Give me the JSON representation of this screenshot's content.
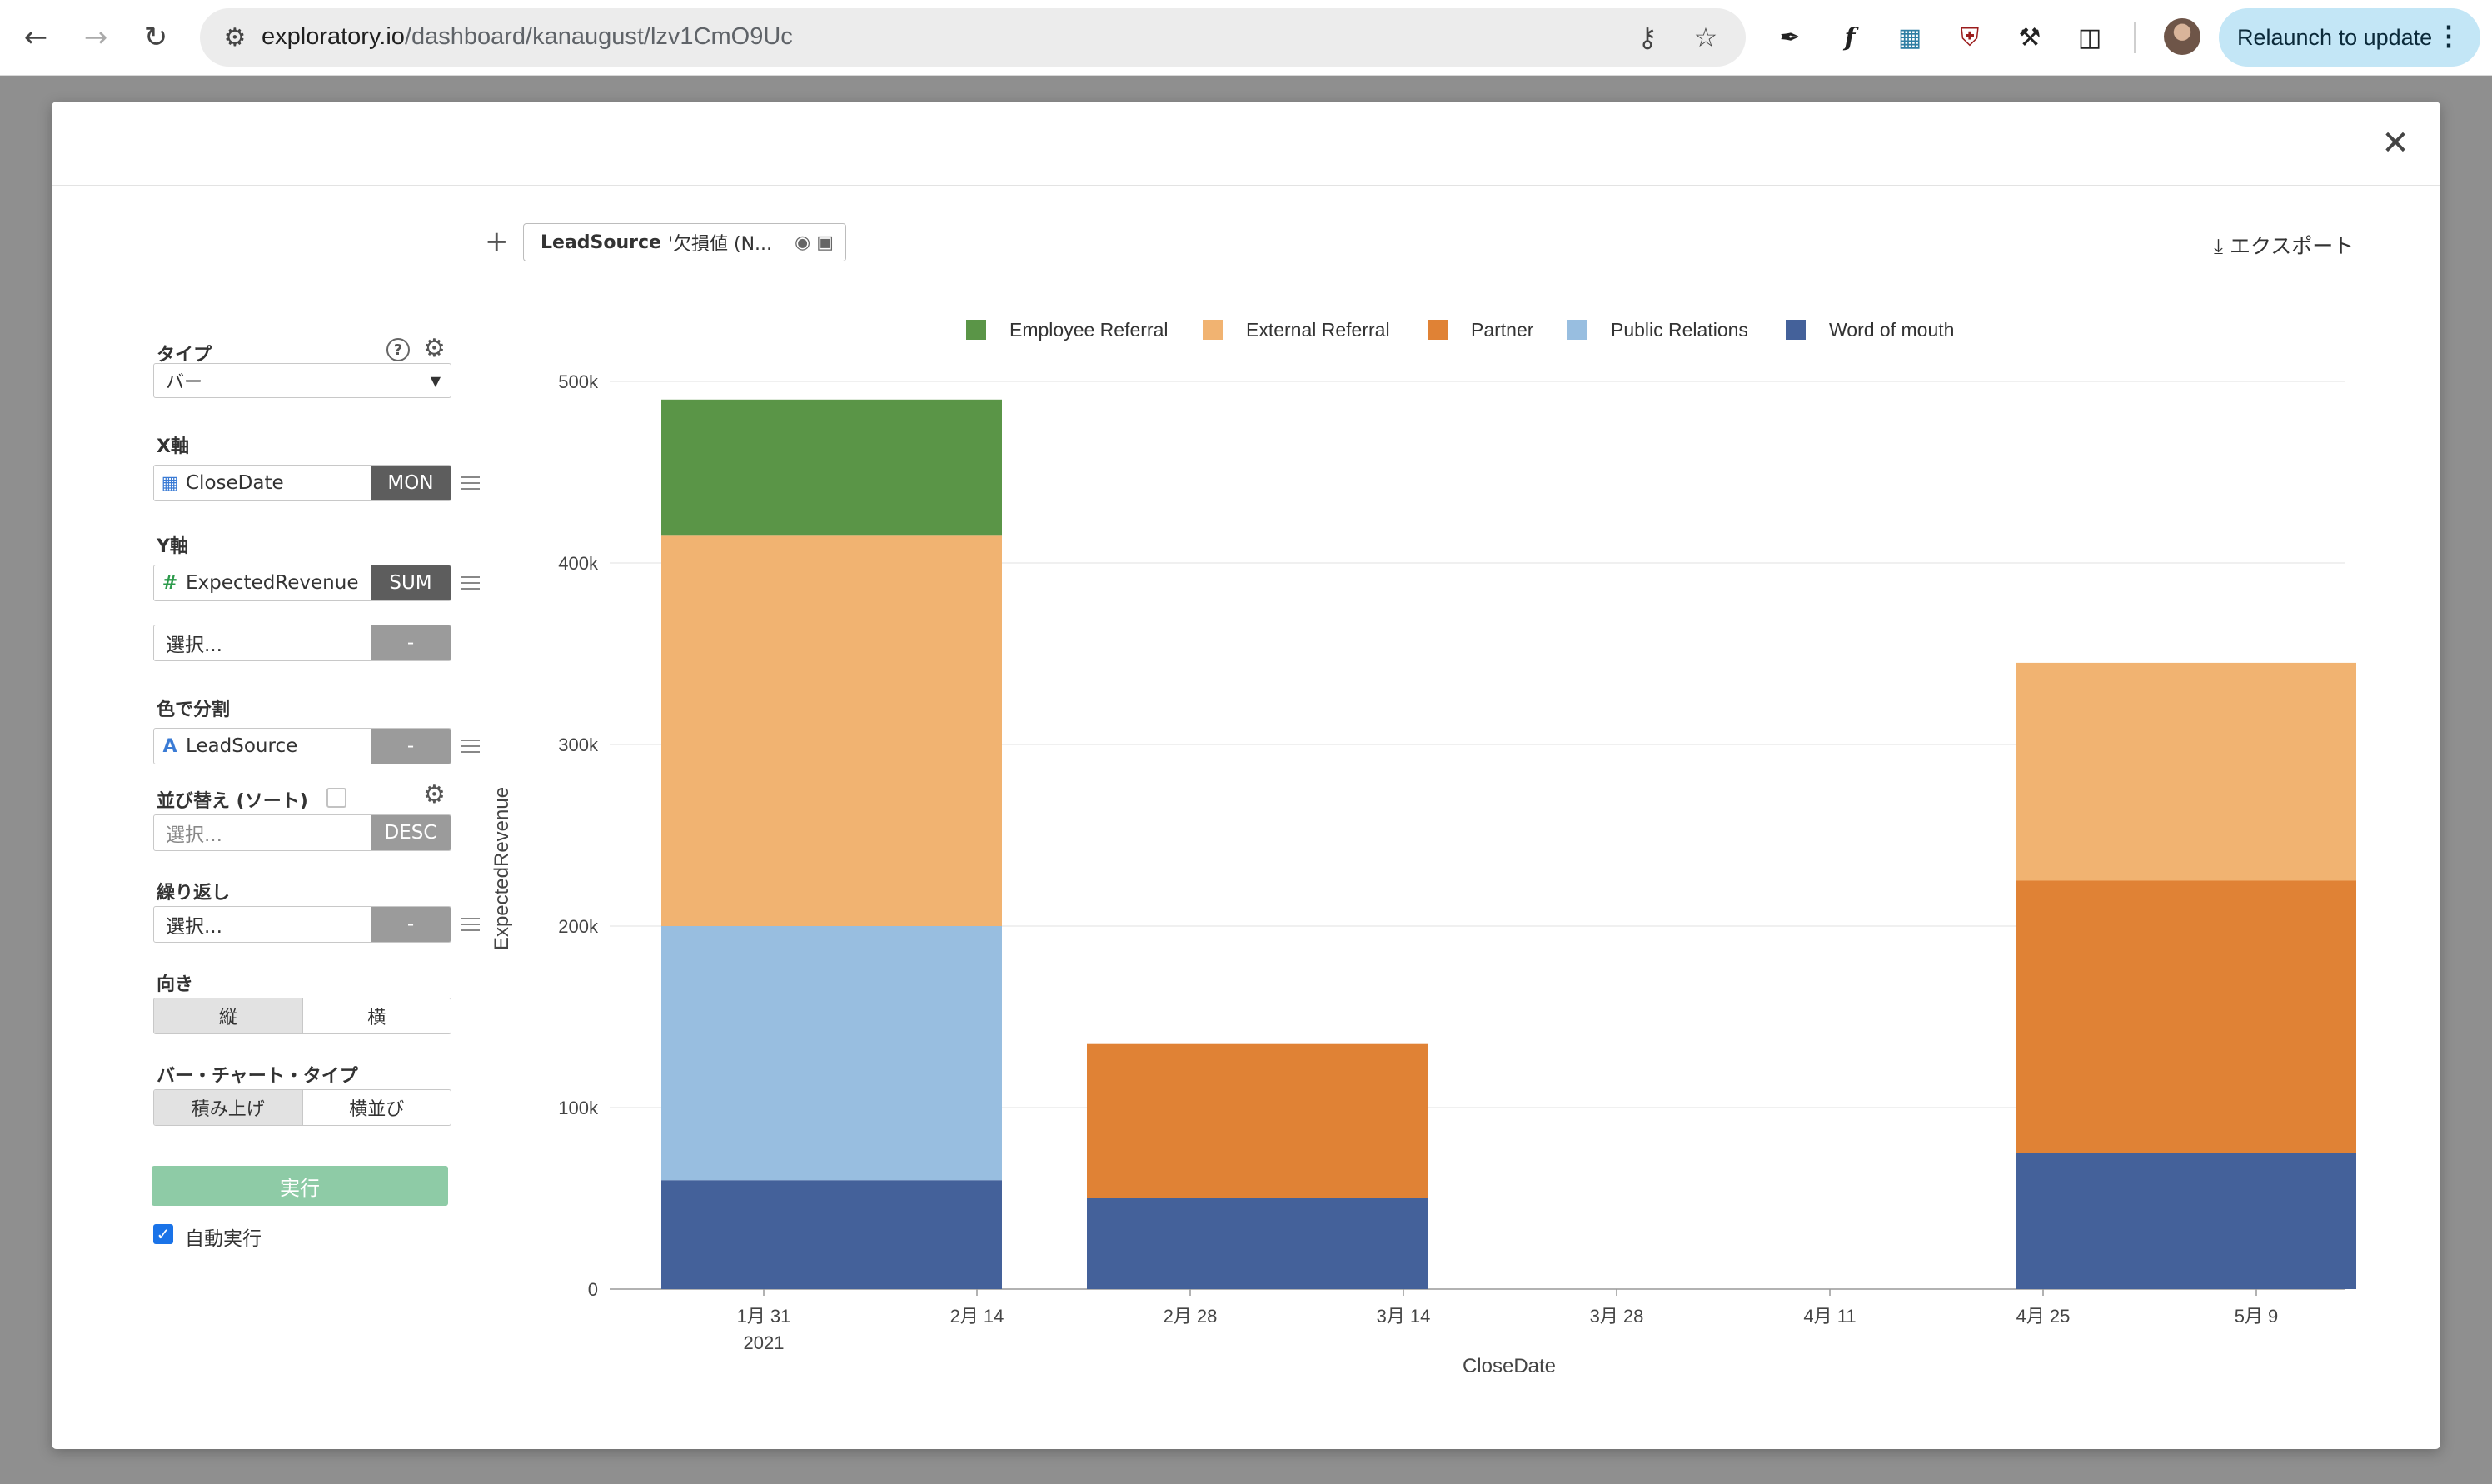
{
  "browser": {
    "url_host": "exploratory.io",
    "url_path": "/dashboard/kanaugust/lzv1CmO9Uc",
    "relaunch_label": "Relaunch to update"
  },
  "panel": {
    "type_label": "タイプ",
    "type_value": "バー",
    "x_axis_label": "X軸",
    "x_field": "CloseDate",
    "x_agg": "MON",
    "y_axis_label": "Y軸",
    "y_field": "ExpectedRevenue",
    "y_agg": "SUM",
    "y2_placeholder": "選択...",
    "y2_agg": "-",
    "color_label": "色で分割",
    "color_field": "LeadSource",
    "color_agg": "-",
    "sort_label": "並び替え (ソート)",
    "sort_placeholder": "選択...",
    "sort_order": "DESC",
    "repeat_label": "繰り返し",
    "repeat_placeholder": "選択...",
    "repeat_agg": "-",
    "orientation_label": "向き",
    "orientation_options": [
      "縦",
      "横"
    ],
    "bar_type_label": "バー・チャート・タイプ",
    "bar_type_options": [
      "積み上げ",
      "横並び"
    ],
    "run_label": "実行",
    "auto_run_label": "自動実行"
  },
  "toolbar": {
    "filter_name": "LeadSource",
    "filter_value": "'欠損値 (N...",
    "export_label": "エクスポート"
  },
  "chart_data": {
    "type": "bar",
    "stacked": true,
    "xlabel": "CloseDate",
    "ylabel": "ExpectedRevenue",
    "ylim": [
      0,
      500000
    ],
    "y_ticks": [
      "0",
      "100k",
      "200k",
      "300k",
      "400k",
      "500k"
    ],
    "x_ticks": [
      "1月 31",
      "2月 14",
      "2月 28",
      "3月 14",
      "3月 28",
      "4月 11",
      "4月 25",
      "5月 9"
    ],
    "x_tick_sub": "2021",
    "legend_position": "top",
    "grid": true,
    "categories": [
      "2021-01",
      "2021-02",
      "2021-04"
    ],
    "series": [
      {
        "name": "Word of mouth",
        "color": "#44619a",
        "values": [
          60000,
          50000,
          75000
        ]
      },
      {
        "name": "Public Relations",
        "color": "#98bee0",
        "values": [
          140000,
          0,
          0
        ]
      },
      {
        "name": "Partner",
        "color": "#e08235",
        "values": [
          0,
          85000,
          150000
        ]
      },
      {
        "name": "External Referral",
        "color": "#f1b371",
        "values": [
          215000,
          0,
          120000
        ]
      },
      {
        "name": "Employee Referral",
        "color": "#5a9547",
        "values": [
          75000,
          0,
          0
        ]
      }
    ],
    "legend_order": [
      "Employee Referral",
      "External Referral",
      "Partner",
      "Public Relations",
      "Word of mouth"
    ]
  }
}
